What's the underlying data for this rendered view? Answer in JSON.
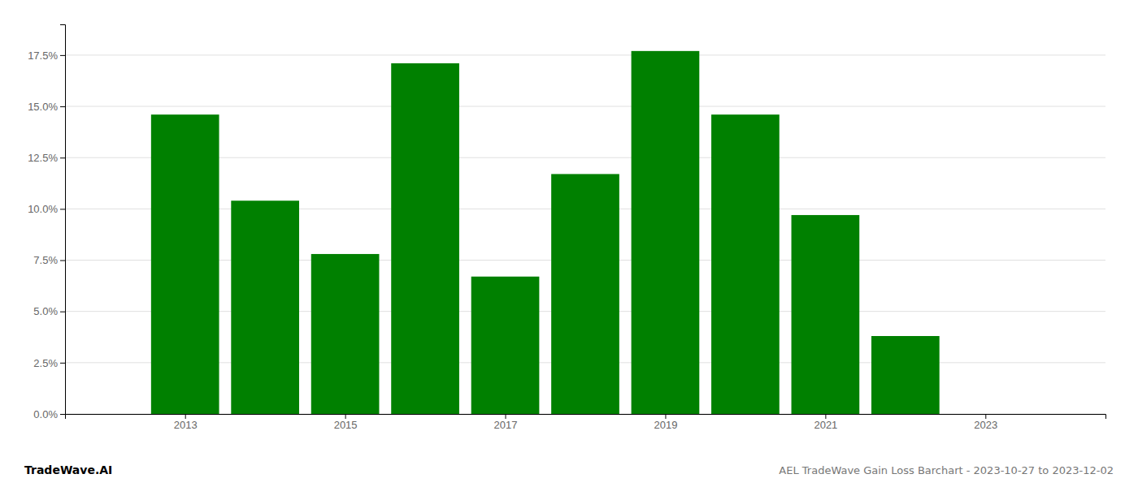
{
  "chart_data": {
    "type": "bar",
    "title": "AEL TradeWave Gain Loss Barchart - 2023-10-27 to 2023-12-02",
    "annotations": [
      {
        "text": "TradeWave.AI"
      }
    ],
    "x": [
      2013,
      2014,
      2015,
      2016,
      2017,
      2018,
      2019,
      2020,
      2021,
      2022,
      2023
    ],
    "values": [
      0.146,
      0.104,
      0.078,
      0.171,
      0.067,
      0.117,
      0.177,
      0.146,
      0.097,
      0.038,
      0.0
    ],
    "color": "#008000",
    "xlim": [
      2011.5,
      2024.5
    ],
    "xticks": [
      2013,
      2015,
      2017,
      2019,
      2021,
      2023
    ],
    "ylim": [
      0.0,
      0.19
    ],
    "yticks": [
      {
        "value": 0.0,
        "label": "0.0%"
      },
      {
        "value": 0.025,
        "label": "2.5%"
      },
      {
        "value": 0.05,
        "label": "5.0%"
      },
      {
        "value": 0.075,
        "label": "7.5%"
      },
      {
        "value": 0.1,
        "label": "10.0%"
      },
      {
        "value": 0.125,
        "label": "12.5%"
      },
      {
        "value": 0.15,
        "label": "15.0%"
      },
      {
        "value": 0.175,
        "label": "17.5%"
      }
    ],
    "grid": true
  }
}
